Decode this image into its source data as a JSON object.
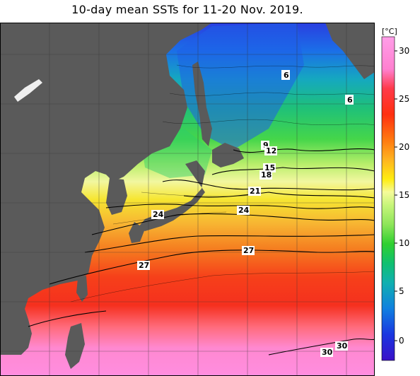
{
  "title": "10-day mean SSTs for 11-20 Nov. 2019.",
  "legend": {
    "unit": "[°C]",
    "ticks": [
      "30",
      "25",
      "20",
      "15",
      "10",
      "5",
      "0"
    ]
  },
  "contour_labels": [
    "6",
    "6",
    "9",
    "12",
    "15",
    "18",
    "21",
    "24",
    "24",
    "27",
    "27",
    "30",
    "30"
  ],
  "colors": {
    "land": "#5a5a5a",
    "cold": "#1a3ad6",
    "warm": "#ff3a1a",
    "hot": "#ff8ad6"
  }
}
